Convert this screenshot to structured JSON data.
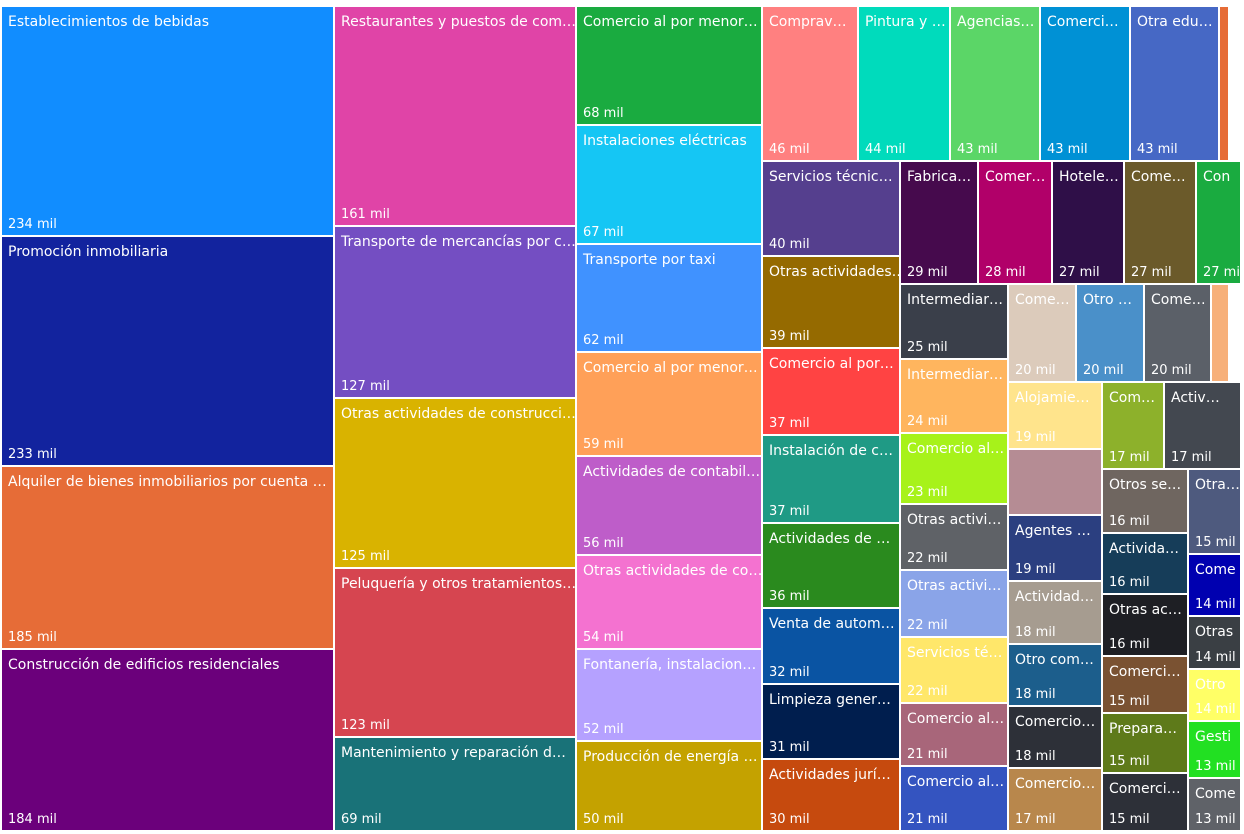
{
  "chart_data": {
    "type": "treemap",
    "categories": [
      "Establecimientos de bebidas",
      "Promoción inmobiliaria",
      "Alquiler de bienes inmobiliarios por cuenta …",
      "Construcción de edificios residenciales",
      "Restaurantes y puestos de com…",
      "Transporte de mercancías por c…",
      "Otras actividades de construcci…",
      "Peluquería y otros tratamientos…",
      "Mantenimiento y reparación d…",
      "Comercio al por menor…",
      "Instalaciones eléctricas",
      "Transporte por taxi",
      "Comercio al por menor…",
      "Actividades de contabil…",
      "Otras actividades de co…",
      "Fontanería, instalacion…",
      "Producción de energía …",
      "Comprav…",
      "Pintura y …",
      "Agencias…",
      "Comerci…",
      "Otra edu…",
      "Servicios técnic…",
      "Otras actividades…",
      "Comercio al por…",
      "Instalación de c…",
      "Actividades de …",
      "Venta de autom…",
      "Limpieza gener…",
      "Actividades jurí…",
      "Fabrica…",
      "Comer…",
      "Hotele…",
      "Come…",
      "Con",
      "Intermediar…",
      "Intermediar…",
      "Comercio al…",
      "Otras activi…",
      "Otras activi…",
      "Servicios té…",
      "Comercio al…",
      "Comercio al…",
      "Come…",
      "Otro …",
      "Come…",
      "Alojamie…",
      "Agentes …",
      "Actividad…",
      "Otro com…",
      "Comercio…",
      "Comercio…",
      "Com…",
      "Activ…",
      "Otros se…",
      "Activida…",
      "Otras ac…",
      "Comerci…",
      "Prepara…",
      "Comerci…",
      "Otra…",
      "Come",
      "Otras",
      "Otro",
      "Gesti",
      "Come"
    ],
    "values": [
      234,
      233,
      185,
      184,
      161,
      127,
      125,
      123,
      69,
      68,
      67,
      62,
      59,
      56,
      54,
      52,
      50,
      46,
      44,
      43,
      43,
      43,
      40,
      39,
      37,
      37,
      36,
      32,
      31,
      30,
      29,
      28,
      27,
      27,
      27,
      25,
      24,
      23,
      22,
      22,
      22,
      21,
      21,
      20,
      20,
      20,
      19,
      19,
      18,
      18,
      18,
      17,
      17,
      17,
      16,
      16,
      16,
      15,
      15,
      15,
      15,
      14,
      14,
      14,
      13,
      13
    ],
    "value_labels": [
      "234 mil",
      "233 mil",
      "185 mil",
      "184 mil",
      "161 mil",
      "127 mil",
      "125 mil",
      "123 mil",
      "69 mil",
      "68 mil",
      "67 mil",
      "62 mil",
      "59 mil",
      "56 mil",
      "54 mil",
      "52 mil",
      "50 mil",
      "46 mil",
      "44 mil",
      "43 mil",
      "43 mil",
      "43 mil",
      "40 mil",
      "39 mil",
      "37 mil",
      "37 mil",
      "36 mil",
      "32 mil",
      "31 mil",
      "30 mil",
      "29 mil",
      "28 mil",
      "27 mil",
      "27 mil",
      "27 mil",
      "25 mil",
      "24 mil",
      "23 mil",
      "22 mil",
      "22 mil",
      "22 mil",
      "21 mil",
      "21 mil",
      "20 mil",
      "20 mil",
      "20 mil",
      "19 mil",
      "19 mil",
      "18 mil",
      "18 mil",
      "18 mil",
      "17 mil",
      "17 mil",
      "17 mil",
      "16 mil",
      "16 mil",
      "16 mil",
      "15 mil",
      "15 mil",
      "15 mil",
      "15 mil",
      "14 mil",
      "14 mil",
      "14 mil",
      "13 mil",
      "13 mil"
    ],
    "colors": [
      "#118DFF",
      "#12239E",
      "#E66C37",
      "#6B007B",
      "#E044A7",
      "#744EC2",
      "#D9B300",
      "#D64550",
      "#197278",
      "#1AAB40",
      "#15C6F4",
      "#4092FF",
      "#FFA058",
      "#BE5DC9",
      "#F472D0",
      "#B5A1FF",
      "#C4A200",
      "#FF8080",
      "#00DBBC",
      "#5BD667",
      "#0091D5",
      "#4668C5",
      "#553F8E",
      "#956A00",
      "#FF4343",
      "#1F9A85",
      "#2A8A1E",
      "#0A54A3",
      "#001E4E",
      "#C64A0E",
      "#460A4D",
      "#B10069",
      "#2F0F48",
      "#6B5A2A",
      "#1AAB40",
      "#3A3F4A",
      "#FFB55E",
      "#A7F21A",
      "#5F6267",
      "#8AA4E8",
      "#FFE76A",
      "#A8667A",
      "#3454C0",
      "#DCCBBB",
      "#4A90C9",
      "#5B6068",
      "#FFE48C",
      "#2B3F80",
      "#A69C90",
      "#1C5E8C",
      "#2D3038",
      "#B8874C",
      "#8DB12B",
      "#434850",
      "#6F6660",
      "#163D59",
      "#1E1F24",
      "#7A5232",
      "#5E7A1A",
      "#2D3038",
      "#4E5A7E",
      "#0000B0",
      "#3A3F44",
      "#FFFF66",
      "#22E022",
      "#5F6268"
    ]
  }
}
